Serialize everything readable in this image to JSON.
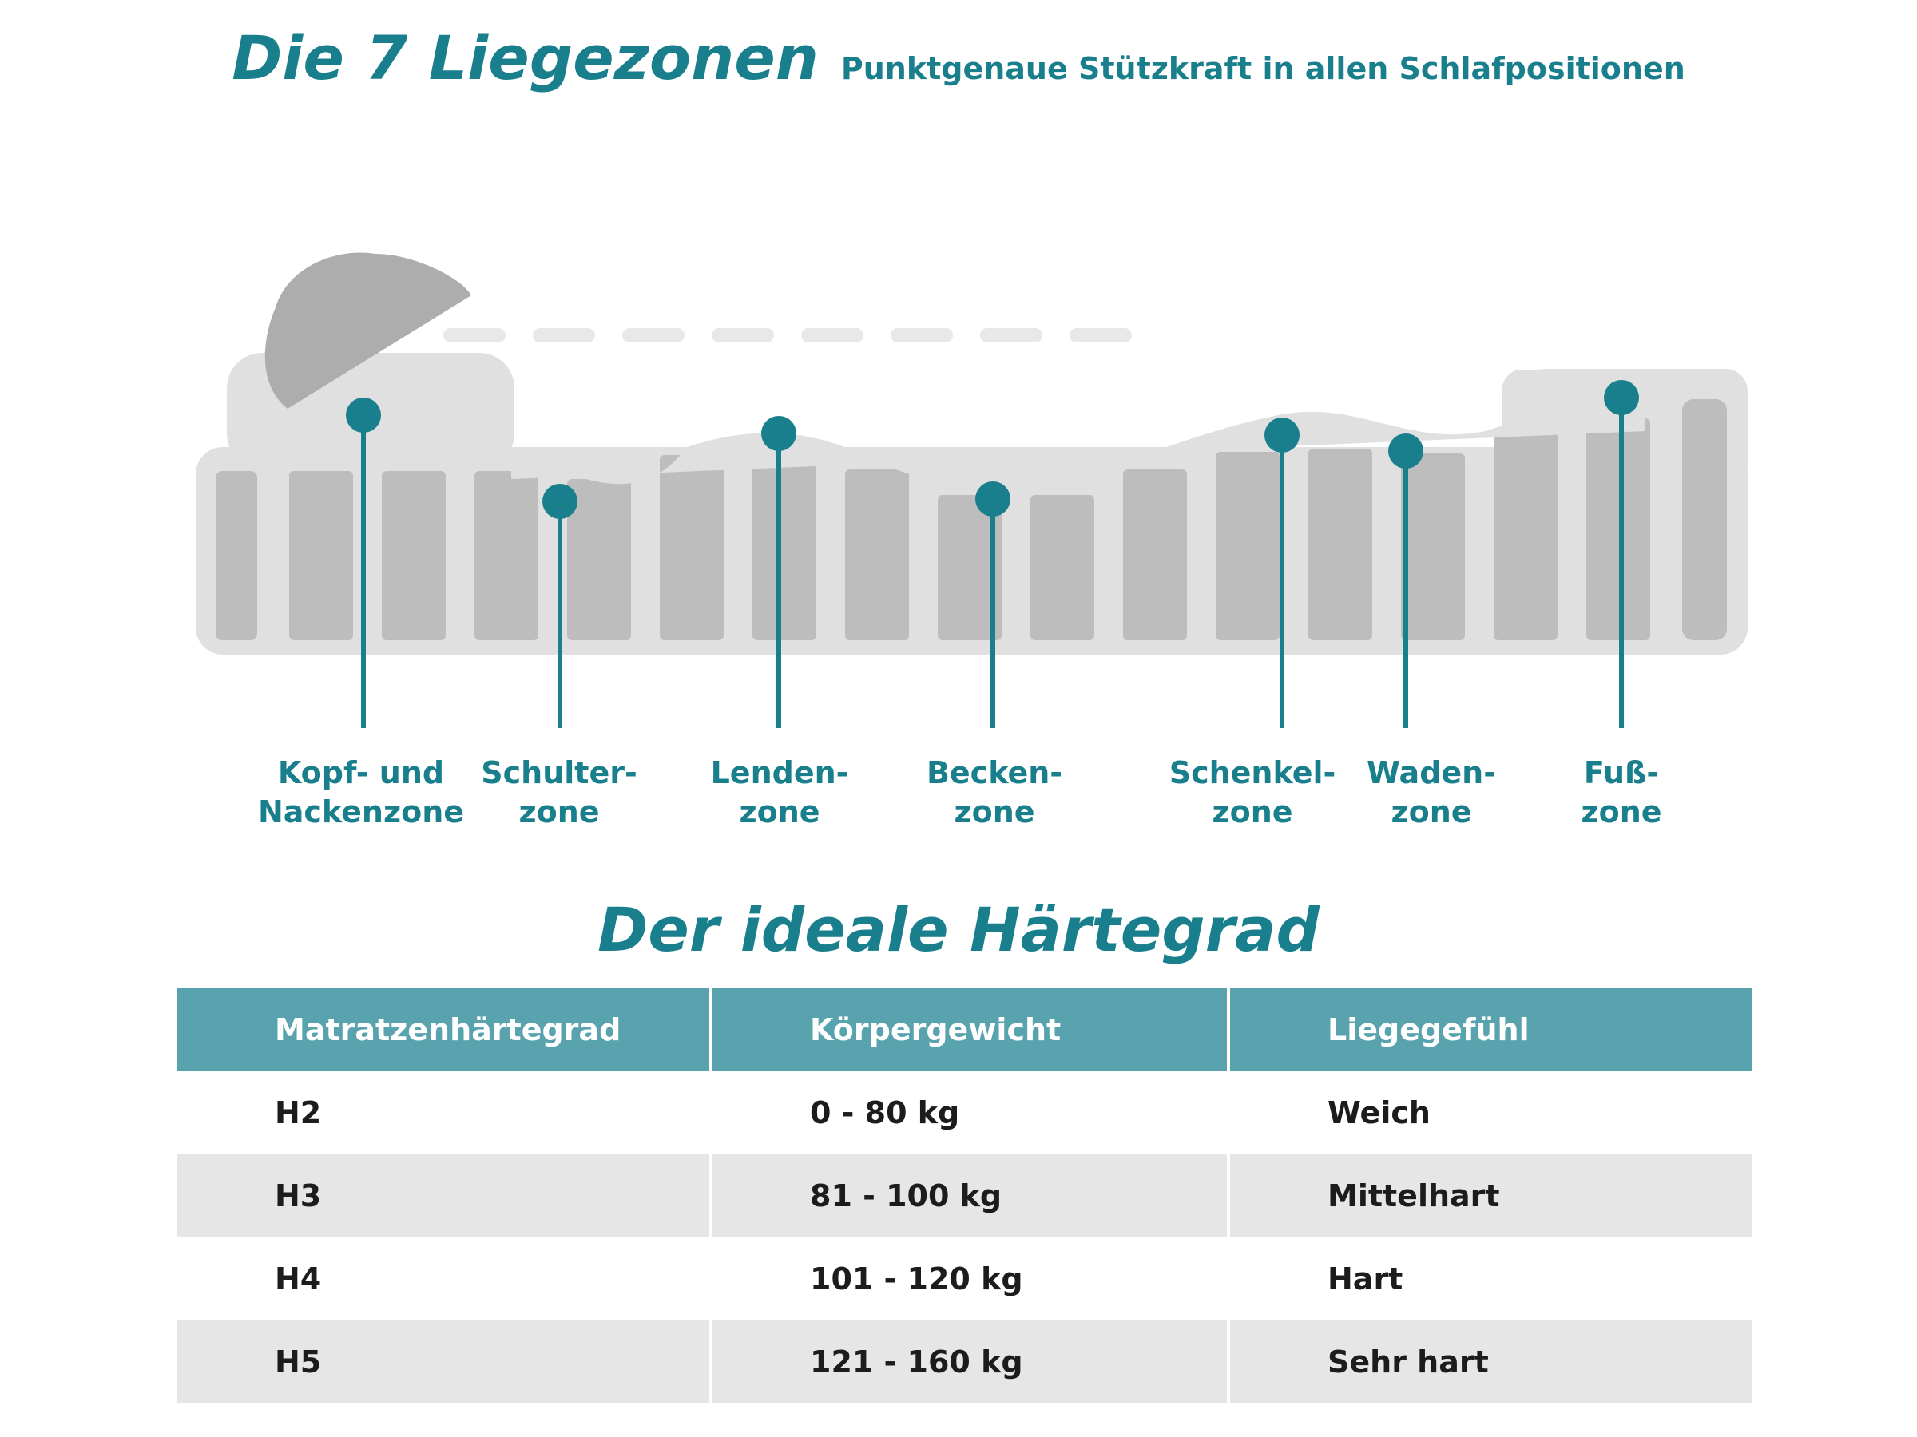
{
  "header": {
    "title": "Die 7 Liegezonen",
    "subtitle": "Punktgenaue Stützkraft in allen Schlafpositionen"
  },
  "zones": [
    {
      "line1": "Kopf- und",
      "line2": "Nackenzone"
    },
    {
      "line1": "Schulter-",
      "line2": "zone"
    },
    {
      "line1": "Lenden-",
      "line2": "zone"
    },
    {
      "line1": "Becken-",
      "line2": "zone"
    },
    {
      "line1": "Schenkel-",
      "line2": "zone"
    },
    {
      "line1": "Waden-",
      "line2": "zone"
    },
    {
      "line1": "Fuß-",
      "line2": "zone"
    }
  ],
  "colors": {
    "accent": "#1a7f8c",
    "table_header": "#58a3ad",
    "silhouette": "#adadad",
    "mattress_light": "#e0e0e0",
    "mattress_dark": "#bdbdbd"
  },
  "hardness_section": {
    "title": "Der ideale Härtegrad",
    "headers": [
      "Matratzenhärtegrad",
      "Körpergewicht",
      "Liegegefühl"
    ],
    "rows": [
      [
        "H2",
        "0 - 80 kg",
        "Weich"
      ],
      [
        "H3",
        "81 - 100 kg",
        "Mittelhart"
      ],
      [
        "H4",
        "101 - 120 kg",
        "Hart"
      ],
      [
        "H5",
        "121 - 160 kg",
        "Sehr hart"
      ]
    ]
  }
}
